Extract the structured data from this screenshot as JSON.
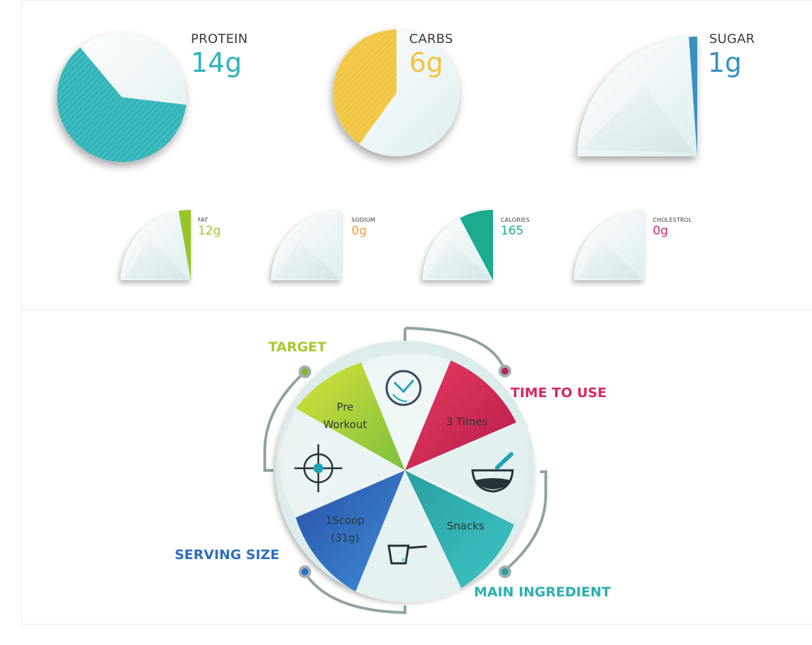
{
  "chart_data": [
    {
      "type": "pie",
      "group": "macros",
      "items": [
        {
          "name": "PROTEIN",
          "value_label": "14g",
          "value": 14,
          "color": "#2fb3b8"
        },
        {
          "name": "CARBS",
          "value_label": "6g",
          "value": 6,
          "color": "#f2c53f"
        },
        {
          "name": "SUGAR",
          "value_label": "1g",
          "value": 1,
          "color": "#3a8fbf"
        }
      ]
    },
    {
      "type": "pie",
      "group": "details",
      "items": [
        {
          "name": "FAT",
          "value_label": "12g",
          "value": 12,
          "color": "#9bc42b"
        },
        {
          "name": "SODIUM",
          "value_label": "0g",
          "value": 0,
          "color": "#f2a13a"
        },
        {
          "name": "CALORIES",
          "value_label": "165",
          "value": 165,
          "color": "#1bab8f"
        },
        {
          "name": "CHOLESTROL",
          "value_label": "0g",
          "value": 0,
          "color": "#d4256b"
        }
      ]
    }
  ],
  "wheel": {
    "titles": {
      "target": "TARGET",
      "time_to_use": "TIME TO USE",
      "main_ingredient": "MAIN INGREDIENT",
      "serving_size": "SERVING SIZE"
    },
    "segments": {
      "target_line1": "Pre",
      "target_line2": "Workout",
      "time_to_use": "3 Times",
      "main_ingredient": "Snacks",
      "serving_line1": "1Scoop",
      "serving_line2": "(31g)"
    },
    "icons": [
      "clock-icon",
      "bowl-icon",
      "measuring-cup-icon",
      "crosshair-icon"
    ],
    "colors": {
      "target": "#a8c92e",
      "time_to_use": "#d62a5a",
      "main_ingredient": "#2ab0b0",
      "serving_size": "#2e6fbf",
      "connector": "#8fa3a3"
    }
  }
}
